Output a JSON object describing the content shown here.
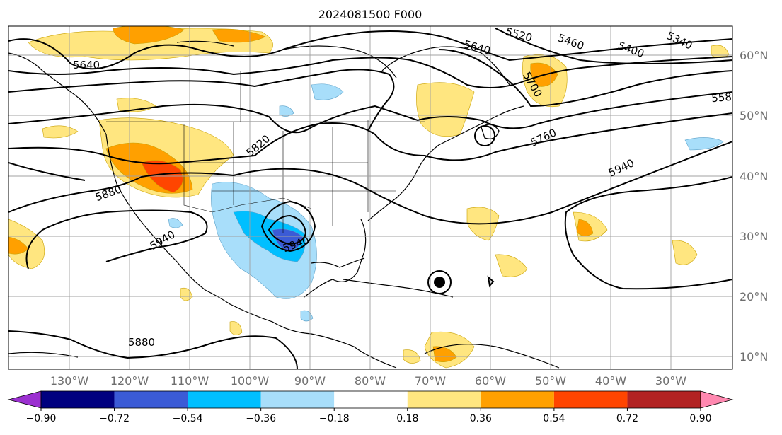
{
  "title": "2024081500 F000",
  "lat_labels": [
    "60°N",
    "50°N",
    "40°N",
    "30°N",
    "20°N",
    "10°N"
  ],
  "lon_labels": [
    "130°W",
    "120°W",
    "110°W",
    "100°W",
    "90°W",
    "80°W",
    "70°W",
    "60°W",
    "50°W",
    "40°W",
    "30°W"
  ],
  "contour_labels": [
    "5640",
    "5640",
    "5520",
    "5460",
    "5400",
    "5340",
    "5700",
    "558",
    "5820",
    "5760",
    "5940",
    "5880",
    "5940",
    "5940",
    "5880"
  ],
  "colorbar": {
    "ticks": [
      "−0.90",
      "−0.72",
      "−0.54",
      "−0.36",
      "−0.18",
      "0.18",
      "0.36",
      "0.54",
      "0.72",
      "0.90"
    ],
    "colors": {
      "under": "#9b30d0",
      "bins": [
        "#00007f",
        "#3b5bd6",
        "#00bfff",
        "#a8defa",
        "#ffffff",
        "#ffe680",
        "#ffa000",
        "#ff4500",
        "#b22222"
      ],
      "over": "#ff88b0"
    }
  }
}
